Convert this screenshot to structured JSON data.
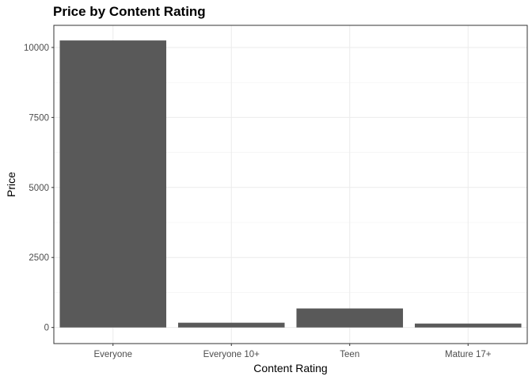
{
  "chart_data": {
    "type": "bar",
    "title": "Price by Content Rating",
    "xlabel": "Content Rating",
    "ylabel": "Price",
    "categories": [
      "Everyone",
      "Everyone 10+",
      "Teen",
      "Mature 17+"
    ],
    "values": [
      10250,
      170,
      680,
      140
    ],
    "ylim": [
      -575,
      10790
    ],
    "yticks": [
      0,
      2500,
      5000,
      7500,
      10000
    ],
    "grid": true,
    "bar_color": "#595959"
  }
}
